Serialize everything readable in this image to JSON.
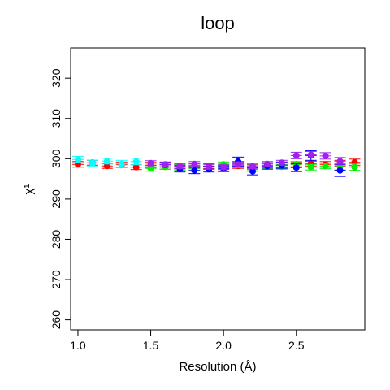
{
  "chart_data": {
    "type": "scatter",
    "title": "loop",
    "xlabel": "Resolution (Å)",
    "ylabel": "χ¹",
    "xlim": [
      0.95,
      2.97
    ],
    "ylim": [
      257.5,
      327.5
    ],
    "xticks": [
      1.0,
      1.5,
      2.0,
      2.5
    ],
    "xtick_labels": [
      "1.0",
      "1.5",
      "2.0",
      "2.5"
    ],
    "yticks": [
      260,
      270,
      280,
      290,
      300,
      310,
      320
    ],
    "ytick_labels": [
      "260",
      "270",
      "280",
      "290",
      "300",
      "310",
      "320"
    ],
    "grid": false,
    "series": [
      {
        "color": "#ff0000",
        "points": [
          {
            "x": 1.0,
            "y": 298.6,
            "err": 0.7
          },
          {
            "x": 1.1,
            "y": 299.0,
            "err": 0.6
          },
          {
            "x": 1.2,
            "y": 298.2,
            "err": 0.6
          },
          {
            "x": 1.3,
            "y": 298.5,
            "err": 0.7
          },
          {
            "x": 1.4,
            "y": 297.9,
            "err": 0.6
          },
          {
            "x": 1.5,
            "y": 298.4,
            "err": 0.7
          },
          {
            "x": 1.6,
            "y": 298.0,
            "err": 0.6
          },
          {
            "x": 1.7,
            "y": 298.1,
            "err": 0.6
          },
          {
            "x": 1.8,
            "y": 298.3,
            "err": 0.6
          },
          {
            "x": 1.9,
            "y": 298.2,
            "err": 0.6
          },
          {
            "x": 2.0,
            "y": 298.3,
            "err": 0.6
          },
          {
            "x": 2.1,
            "y": 298.2,
            "err": 0.6
          },
          {
            "x": 2.2,
            "y": 298.0,
            "err": 0.6
          },
          {
            "x": 2.3,
            "y": 298.3,
            "err": 0.6
          },
          {
            "x": 2.4,
            "y": 298.4,
            "err": 0.6
          },
          {
            "x": 2.5,
            "y": 298.6,
            "err": 0.6
          },
          {
            "x": 2.6,
            "y": 298.8,
            "err": 0.6
          },
          {
            "x": 2.7,
            "y": 298.6,
            "err": 0.7
          },
          {
            "x": 2.8,
            "y": 298.9,
            "err": 0.7
          },
          {
            "x": 2.9,
            "y": 299.1,
            "err": 0.8
          }
        ]
      },
      {
        "color": "#00ee00",
        "points": [
          {
            "x": 1.5,
            "y": 297.6,
            "err": 0.7
          },
          {
            "x": 1.6,
            "y": 298.0,
            "err": 0.6
          },
          {
            "x": 1.7,
            "y": 297.8,
            "err": 0.7
          },
          {
            "x": 1.8,
            "y": 298.1,
            "err": 0.6
          },
          {
            "x": 1.9,
            "y": 298.0,
            "err": 0.6
          },
          {
            "x": 2.0,
            "y": 298.6,
            "err": 0.6
          },
          {
            "x": 2.1,
            "y": 298.4,
            "err": 0.6
          },
          {
            "x": 2.2,
            "y": 297.7,
            "err": 0.7
          },
          {
            "x": 2.3,
            "y": 298.1,
            "err": 0.6
          },
          {
            "x": 2.4,
            "y": 298.0,
            "err": 0.6
          },
          {
            "x": 2.5,
            "y": 298.6,
            "err": 0.7
          },
          {
            "x": 2.6,
            "y": 297.9,
            "err": 0.7
          },
          {
            "x": 2.7,
            "y": 298.2,
            "err": 0.7
          },
          {
            "x": 2.8,
            "y": 298.0,
            "err": 0.8
          },
          {
            "x": 2.9,
            "y": 297.9,
            "err": 0.8
          }
        ]
      },
      {
        "color": "#0000ff",
        "points": [
          {
            "x": 1.6,
            "y": 298.5,
            "err": 0.6
          },
          {
            "x": 1.7,
            "y": 297.5,
            "err": 0.8
          },
          {
            "x": 1.8,
            "y": 297.1,
            "err": 0.8
          },
          {
            "x": 1.9,
            "y": 297.4,
            "err": 0.7
          },
          {
            "x": 2.0,
            "y": 297.5,
            "err": 0.7
          },
          {
            "x": 2.1,
            "y": 299.3,
            "err": 1.1
          },
          {
            "x": 2.2,
            "y": 296.9,
            "err": 0.9
          },
          {
            "x": 2.3,
            "y": 298.2,
            "err": 0.8
          },
          {
            "x": 2.4,
            "y": 298.4,
            "err": 0.8
          },
          {
            "x": 2.5,
            "y": 297.8,
            "err": 1.0
          },
          {
            "x": 2.6,
            "y": 300.8,
            "err": 1.2
          },
          {
            "x": 2.8,
            "y": 297.1,
            "err": 1.5
          }
        ]
      },
      {
        "color": "#00ffff",
        "points": [
          {
            "x": 1.0,
            "y": 299.8,
            "err": 0.8
          },
          {
            "x": 1.1,
            "y": 298.9,
            "err": 0.7
          },
          {
            "x": 1.2,
            "y": 299.4,
            "err": 0.7
          },
          {
            "x": 1.3,
            "y": 298.7,
            "err": 0.9
          },
          {
            "x": 1.4,
            "y": 299.3,
            "err": 0.8
          }
        ]
      },
      {
        "color": "#a020f0",
        "points": [
          {
            "x": 1.5,
            "y": 298.9,
            "err": 0.6
          },
          {
            "x": 1.6,
            "y": 298.6,
            "err": 0.6
          },
          {
            "x": 1.7,
            "y": 298.1,
            "err": 0.6
          },
          {
            "x": 1.8,
            "y": 298.7,
            "err": 0.6
          },
          {
            "x": 1.9,
            "y": 298.0,
            "err": 0.6
          },
          {
            "x": 2.0,
            "y": 297.9,
            "err": 0.6
          },
          {
            "x": 2.1,
            "y": 298.6,
            "err": 0.6
          },
          {
            "x": 2.2,
            "y": 298.1,
            "err": 0.6
          },
          {
            "x": 2.3,
            "y": 298.7,
            "err": 0.6
          },
          {
            "x": 2.4,
            "y": 299.0,
            "err": 0.6
          },
          {
            "x": 2.5,
            "y": 300.8,
            "err": 0.8
          },
          {
            "x": 2.6,
            "y": 301.0,
            "err": 0.8
          },
          {
            "x": 2.7,
            "y": 300.7,
            "err": 0.8
          },
          {
            "x": 2.8,
            "y": 299.4,
            "err": 0.9
          }
        ]
      }
    ]
  }
}
